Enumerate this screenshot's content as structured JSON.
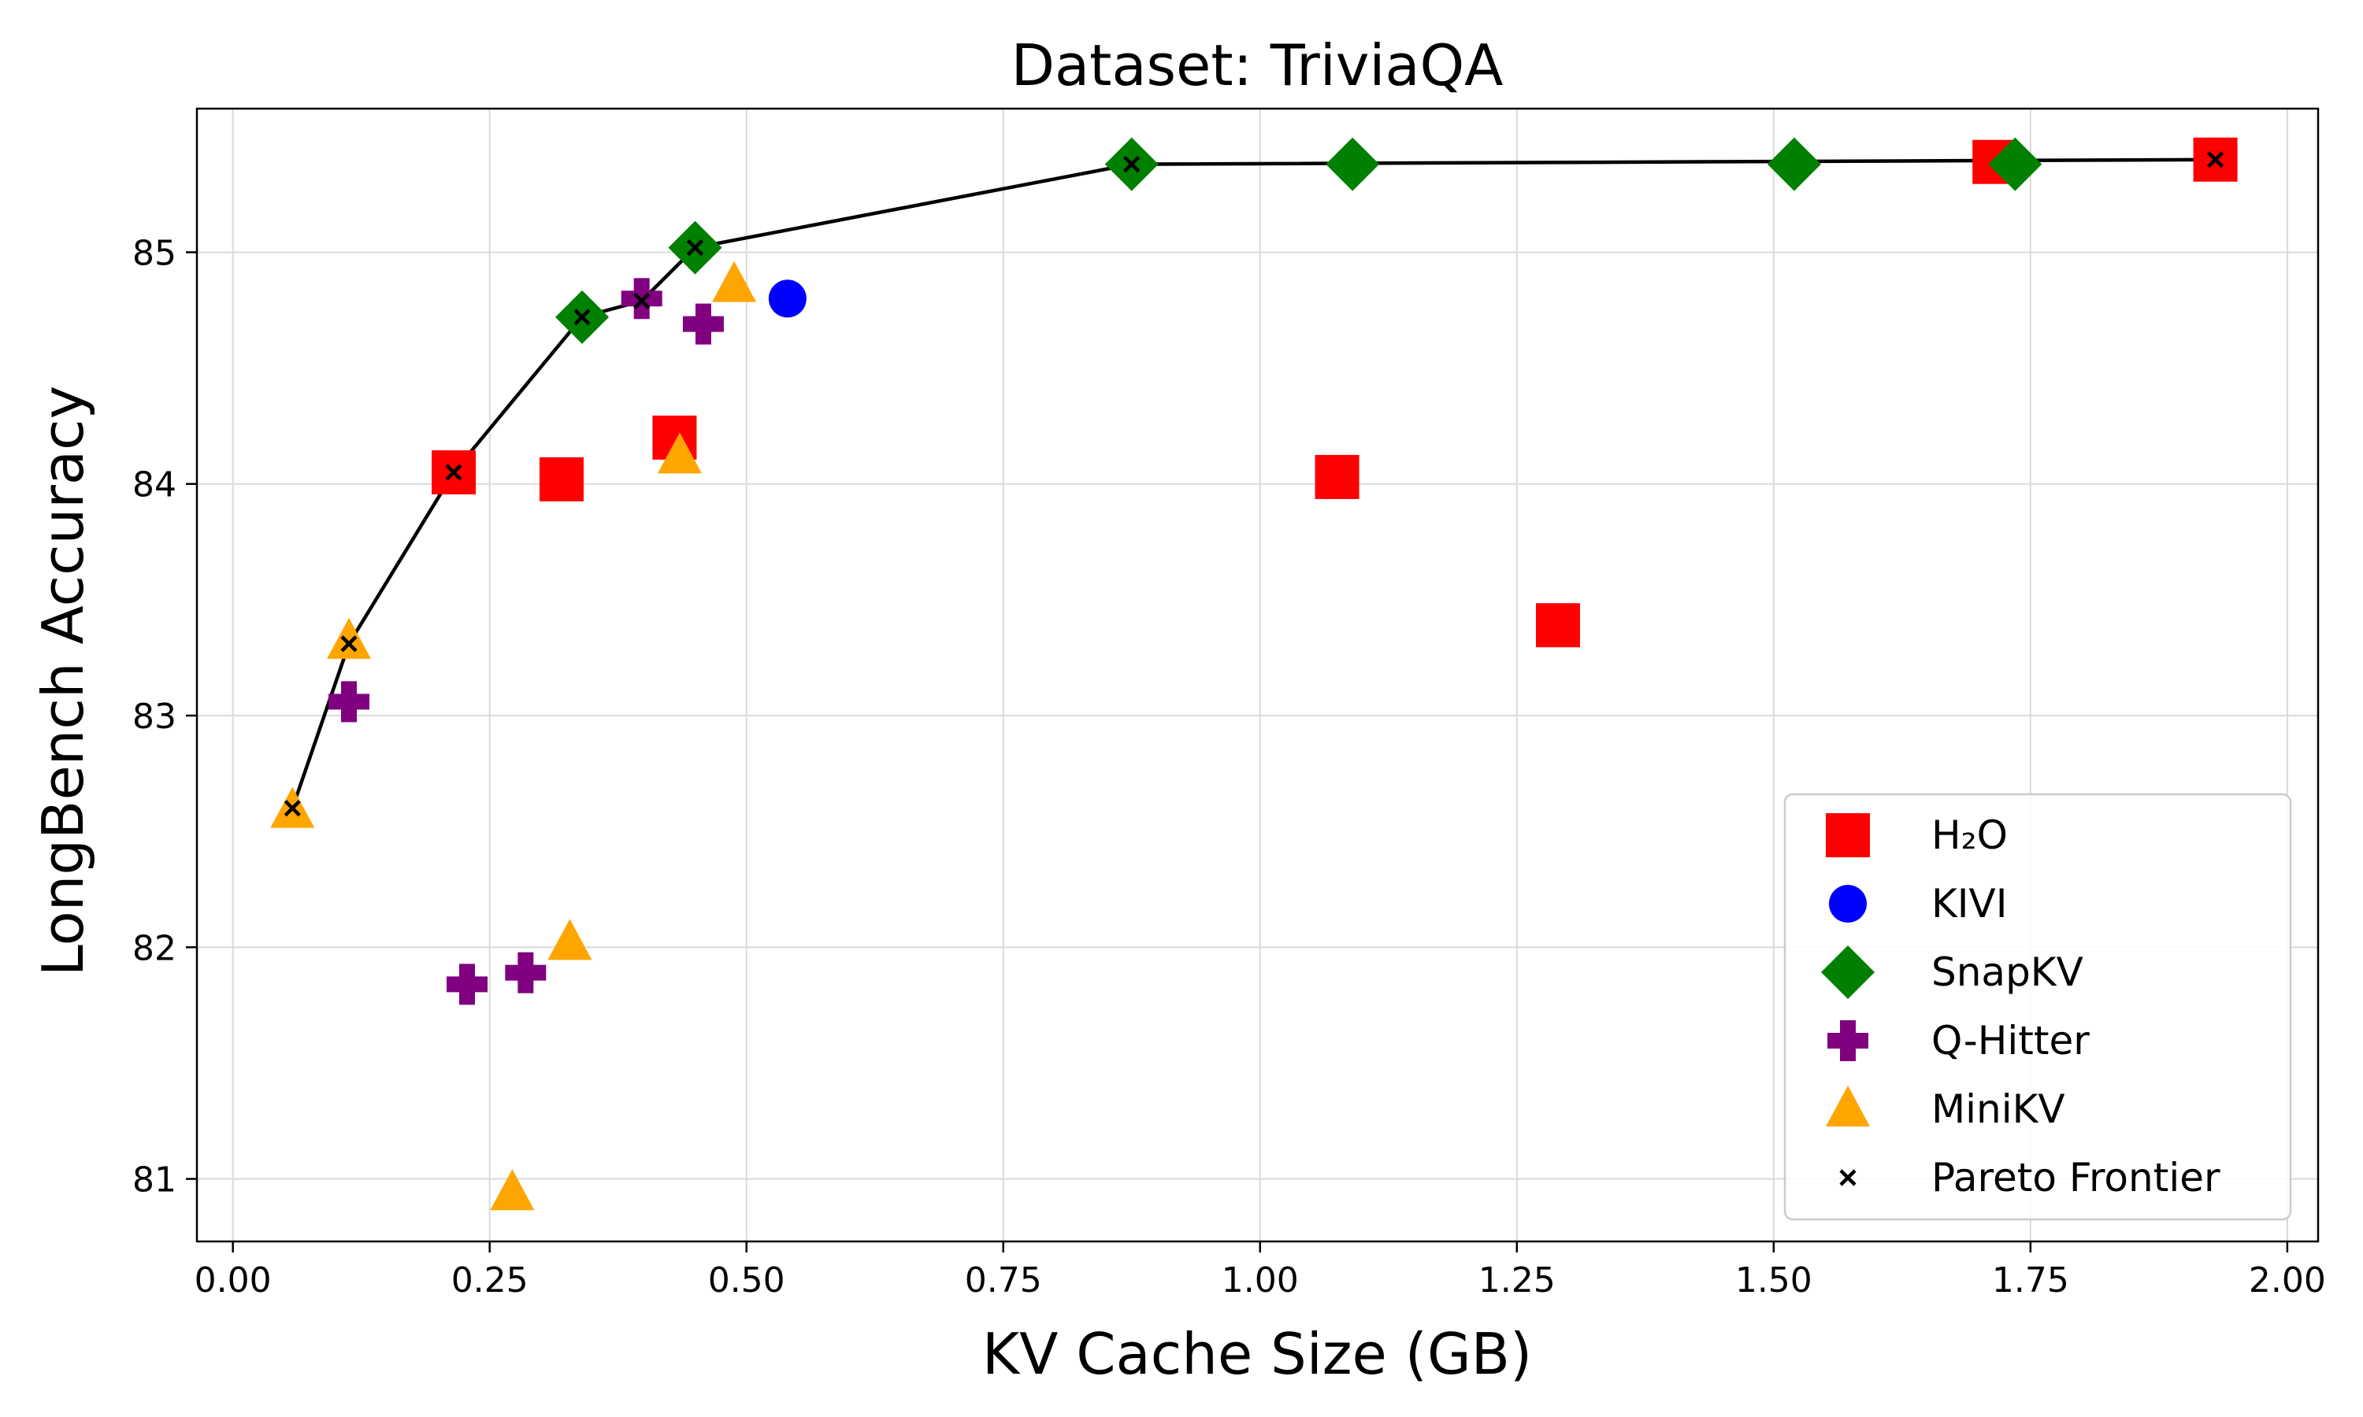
{
  "chart_data": {
    "type": "scatter",
    "title": "Dataset: TriviaQA",
    "xlabel": "KV Cache Size (GB)",
    "ylabel": "LongBench Accuracy",
    "xlim": [
      -0.035,
      2.03
    ],
    "ylim": [
      80.73,
      85.62
    ],
    "xticks": [
      0.0,
      0.25,
      0.5,
      0.75,
      1.0,
      1.25,
      1.5,
      1.75,
      2.0
    ],
    "xtick_labels": [
      "0.00",
      "0.25",
      "0.50",
      "0.75",
      "1.00",
      "1.25",
      "1.50",
      "1.75",
      "2.00"
    ],
    "yticks": [
      81,
      82,
      83,
      84,
      85
    ],
    "ytick_labels": [
      "81",
      "82",
      "83",
      "84",
      "85"
    ],
    "grid": true,
    "legend_position": "bottom-right",
    "series": [
      {
        "name": "H2O",
        "marker": "square",
        "color": "#ff0000",
        "points": [
          [
            0.215,
            84.05
          ],
          [
            0.32,
            84.02
          ],
          [
            0.43,
            84.2
          ],
          [
            1.075,
            84.03
          ],
          [
            1.29,
            83.39
          ],
          [
            1.715,
            85.39
          ],
          [
            1.93,
            85.4
          ]
        ]
      },
      {
        "name": "KIVI",
        "marker": "circle",
        "color": "#0000ff",
        "points": [
          [
            0.54,
            84.8
          ]
        ]
      },
      {
        "name": "SnapKV",
        "marker": "diamond",
        "color": "#008000",
        "points": [
          [
            0.34,
            84.72
          ],
          [
            0.45,
            85.02
          ],
          [
            0.875,
            85.38
          ],
          [
            1.09,
            85.38
          ],
          [
            1.52,
            85.38
          ],
          [
            1.735,
            85.38
          ]
        ]
      },
      {
        "name": "Q-Hitter",
        "marker": "plus",
        "color": "#800080",
        "points": [
          [
            0.113,
            83.06
          ],
          [
            0.228,
            81.84
          ],
          [
            0.285,
            81.89
          ],
          [
            0.398,
            84.8
          ],
          [
            0.458,
            84.69
          ]
        ]
      },
      {
        "name": "MiniKV",
        "marker": "triangle",
        "color": "#ffa500",
        "points": [
          [
            0.058,
            82.59
          ],
          [
            0.113,
            83.32
          ],
          [
            0.272,
            80.94
          ],
          [
            0.328,
            82.02
          ],
          [
            0.435,
            84.12
          ],
          [
            0.488,
            84.86
          ]
        ]
      },
      {
        "name": "Pareto Frontier",
        "marker": "x",
        "color": "#000000",
        "line": true,
        "points": [
          [
            0.058,
            82.6
          ],
          [
            0.113,
            83.31
          ],
          [
            0.215,
            84.05
          ],
          [
            0.34,
            84.72
          ],
          [
            0.398,
            84.79
          ],
          [
            0.45,
            85.02
          ],
          [
            0.875,
            85.38
          ],
          [
            1.93,
            85.4
          ]
        ]
      }
    ],
    "legend": [
      {
        "label": "H₂O",
        "marker": "square",
        "color": "#ff0000"
      },
      {
        "label": "KIVI",
        "marker": "circle",
        "color": "#0000ff"
      },
      {
        "label": "SnapKV",
        "marker": "diamond",
        "color": "#008000"
      },
      {
        "label": "Q-Hitter",
        "marker": "plus",
        "color": "#800080"
      },
      {
        "label": "MiniKV",
        "marker": "triangle",
        "color": "#ffa500"
      },
      {
        "label": "Pareto Frontier",
        "marker": "x",
        "color": "#000000"
      }
    ]
  }
}
